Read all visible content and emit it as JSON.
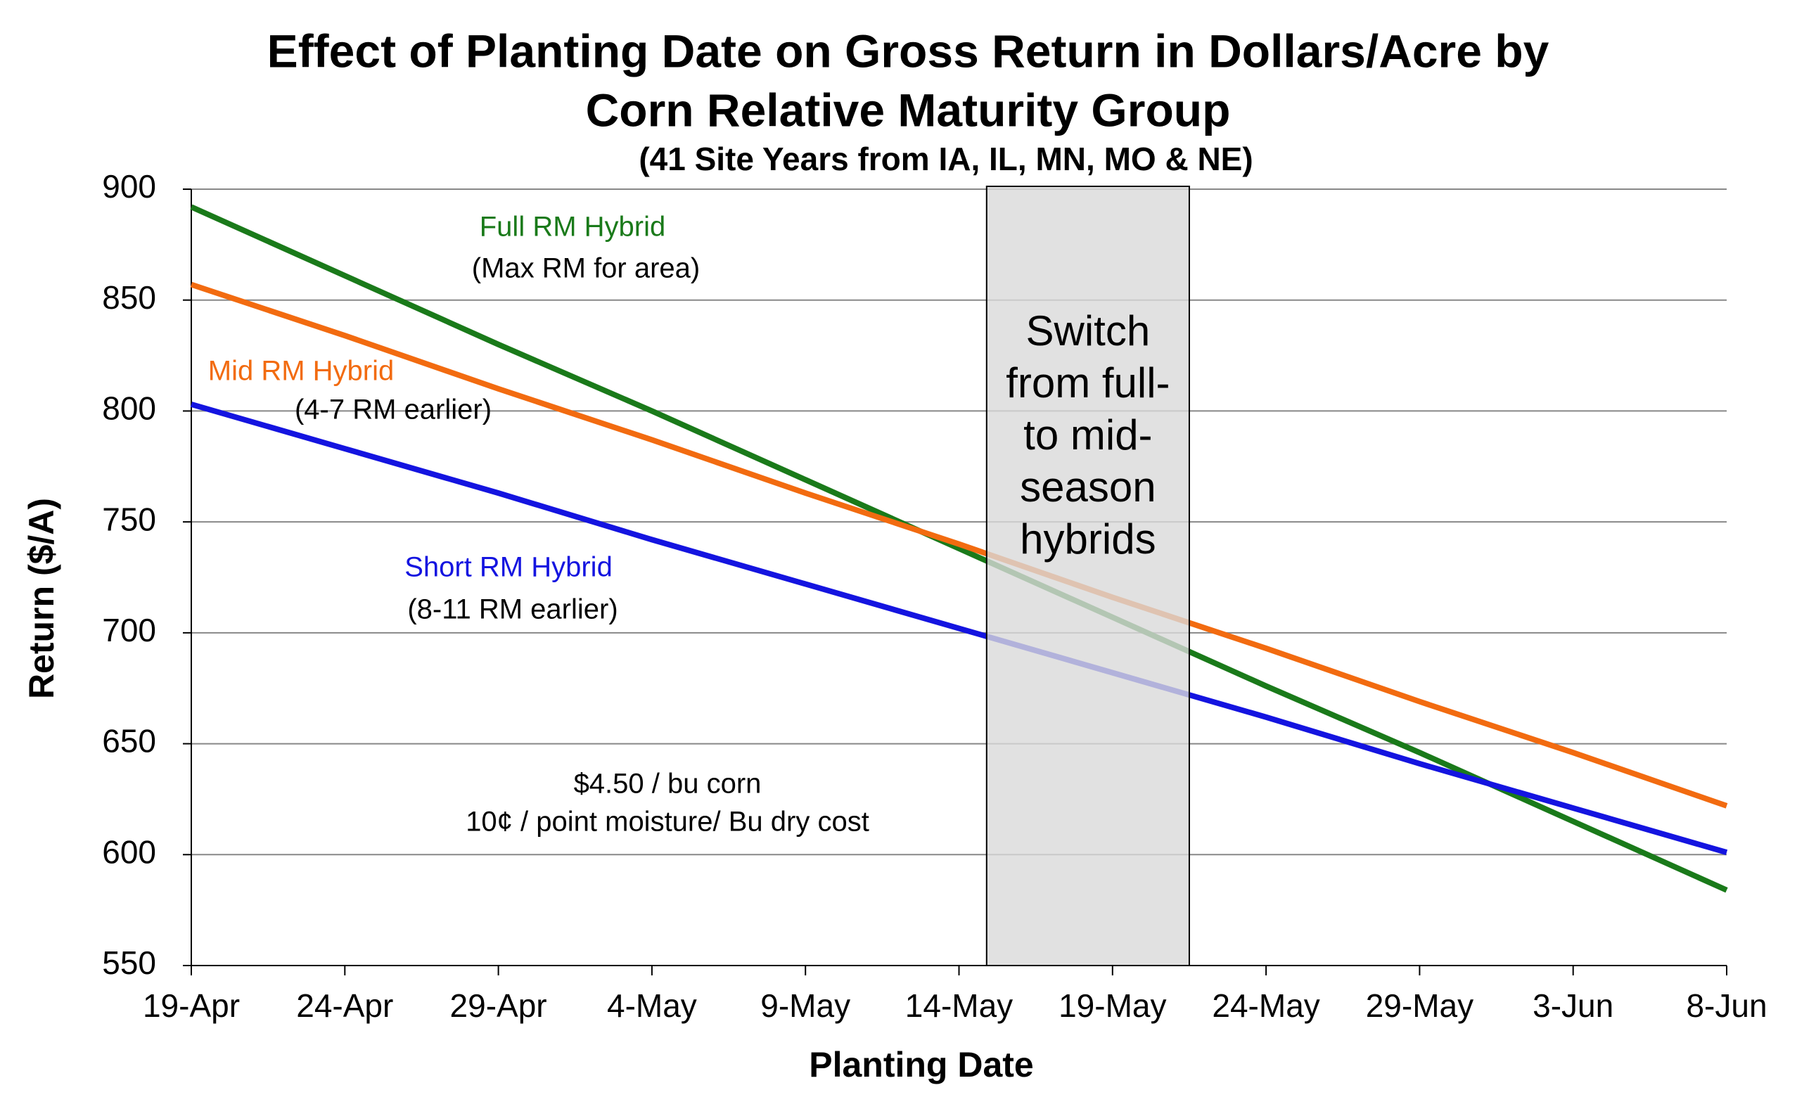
{
  "chart_data": {
    "type": "line",
    "title": [
      "Effect of Planting Date on Gross Return in Dollars/Acre by",
      "Corn Relative Maturity Group"
    ],
    "subtitle": "(41 Site Years from IA, IL, MN, MO & NE)",
    "x_label": "Planting Date",
    "y_label": "Return ($/A)",
    "categories": [
      "19-Apr",
      "24-Apr",
      "29-Apr",
      "4-May",
      "9-May",
      "14-May",
      "19-May",
      "24-May",
      "29-May",
      "3-Jun",
      "8-Jun"
    ],
    "series": [
      {
        "name": "Full RM Hybrid",
        "color": "#1a7a1a",
        "values": [
          892,
          861,
          830,
          800,
          769,
          738,
          707,
          676,
          646,
          615,
          584
        ]
      },
      {
        "name": "Mid RM Hybrid",
        "color": "#f26b10",
        "values": [
          857,
          834,
          810,
          787,
          763,
          740,
          716,
          693,
          669,
          646,
          622
        ]
      },
      {
        "name": "Short RM Hybrid",
        "color": "#1414e0",
        "values": [
          803,
          783,
          763,
          742,
          722,
          702,
          682,
          662,
          641,
          621,
          601
        ]
      }
    ],
    "series_notes": [
      "(Max RM for area)",
      "(4-7 RM earlier)",
      "(8-11 RM earlier)"
    ],
    "notes": [
      "$4.50 / bu corn",
      "10¢ / point moisture/ Bu dry cost"
    ],
    "shaded_band": {
      "x": [
        5.18,
        6.5
      ],
      "text": [
        "Switch",
        "from full-",
        "to mid-",
        "season",
        "hybrids"
      ]
    },
    "ylim": [
      550,
      900
    ],
    "yticks": [
      550,
      600,
      650,
      700,
      750,
      800,
      850,
      900
    ],
    "grid": true
  }
}
